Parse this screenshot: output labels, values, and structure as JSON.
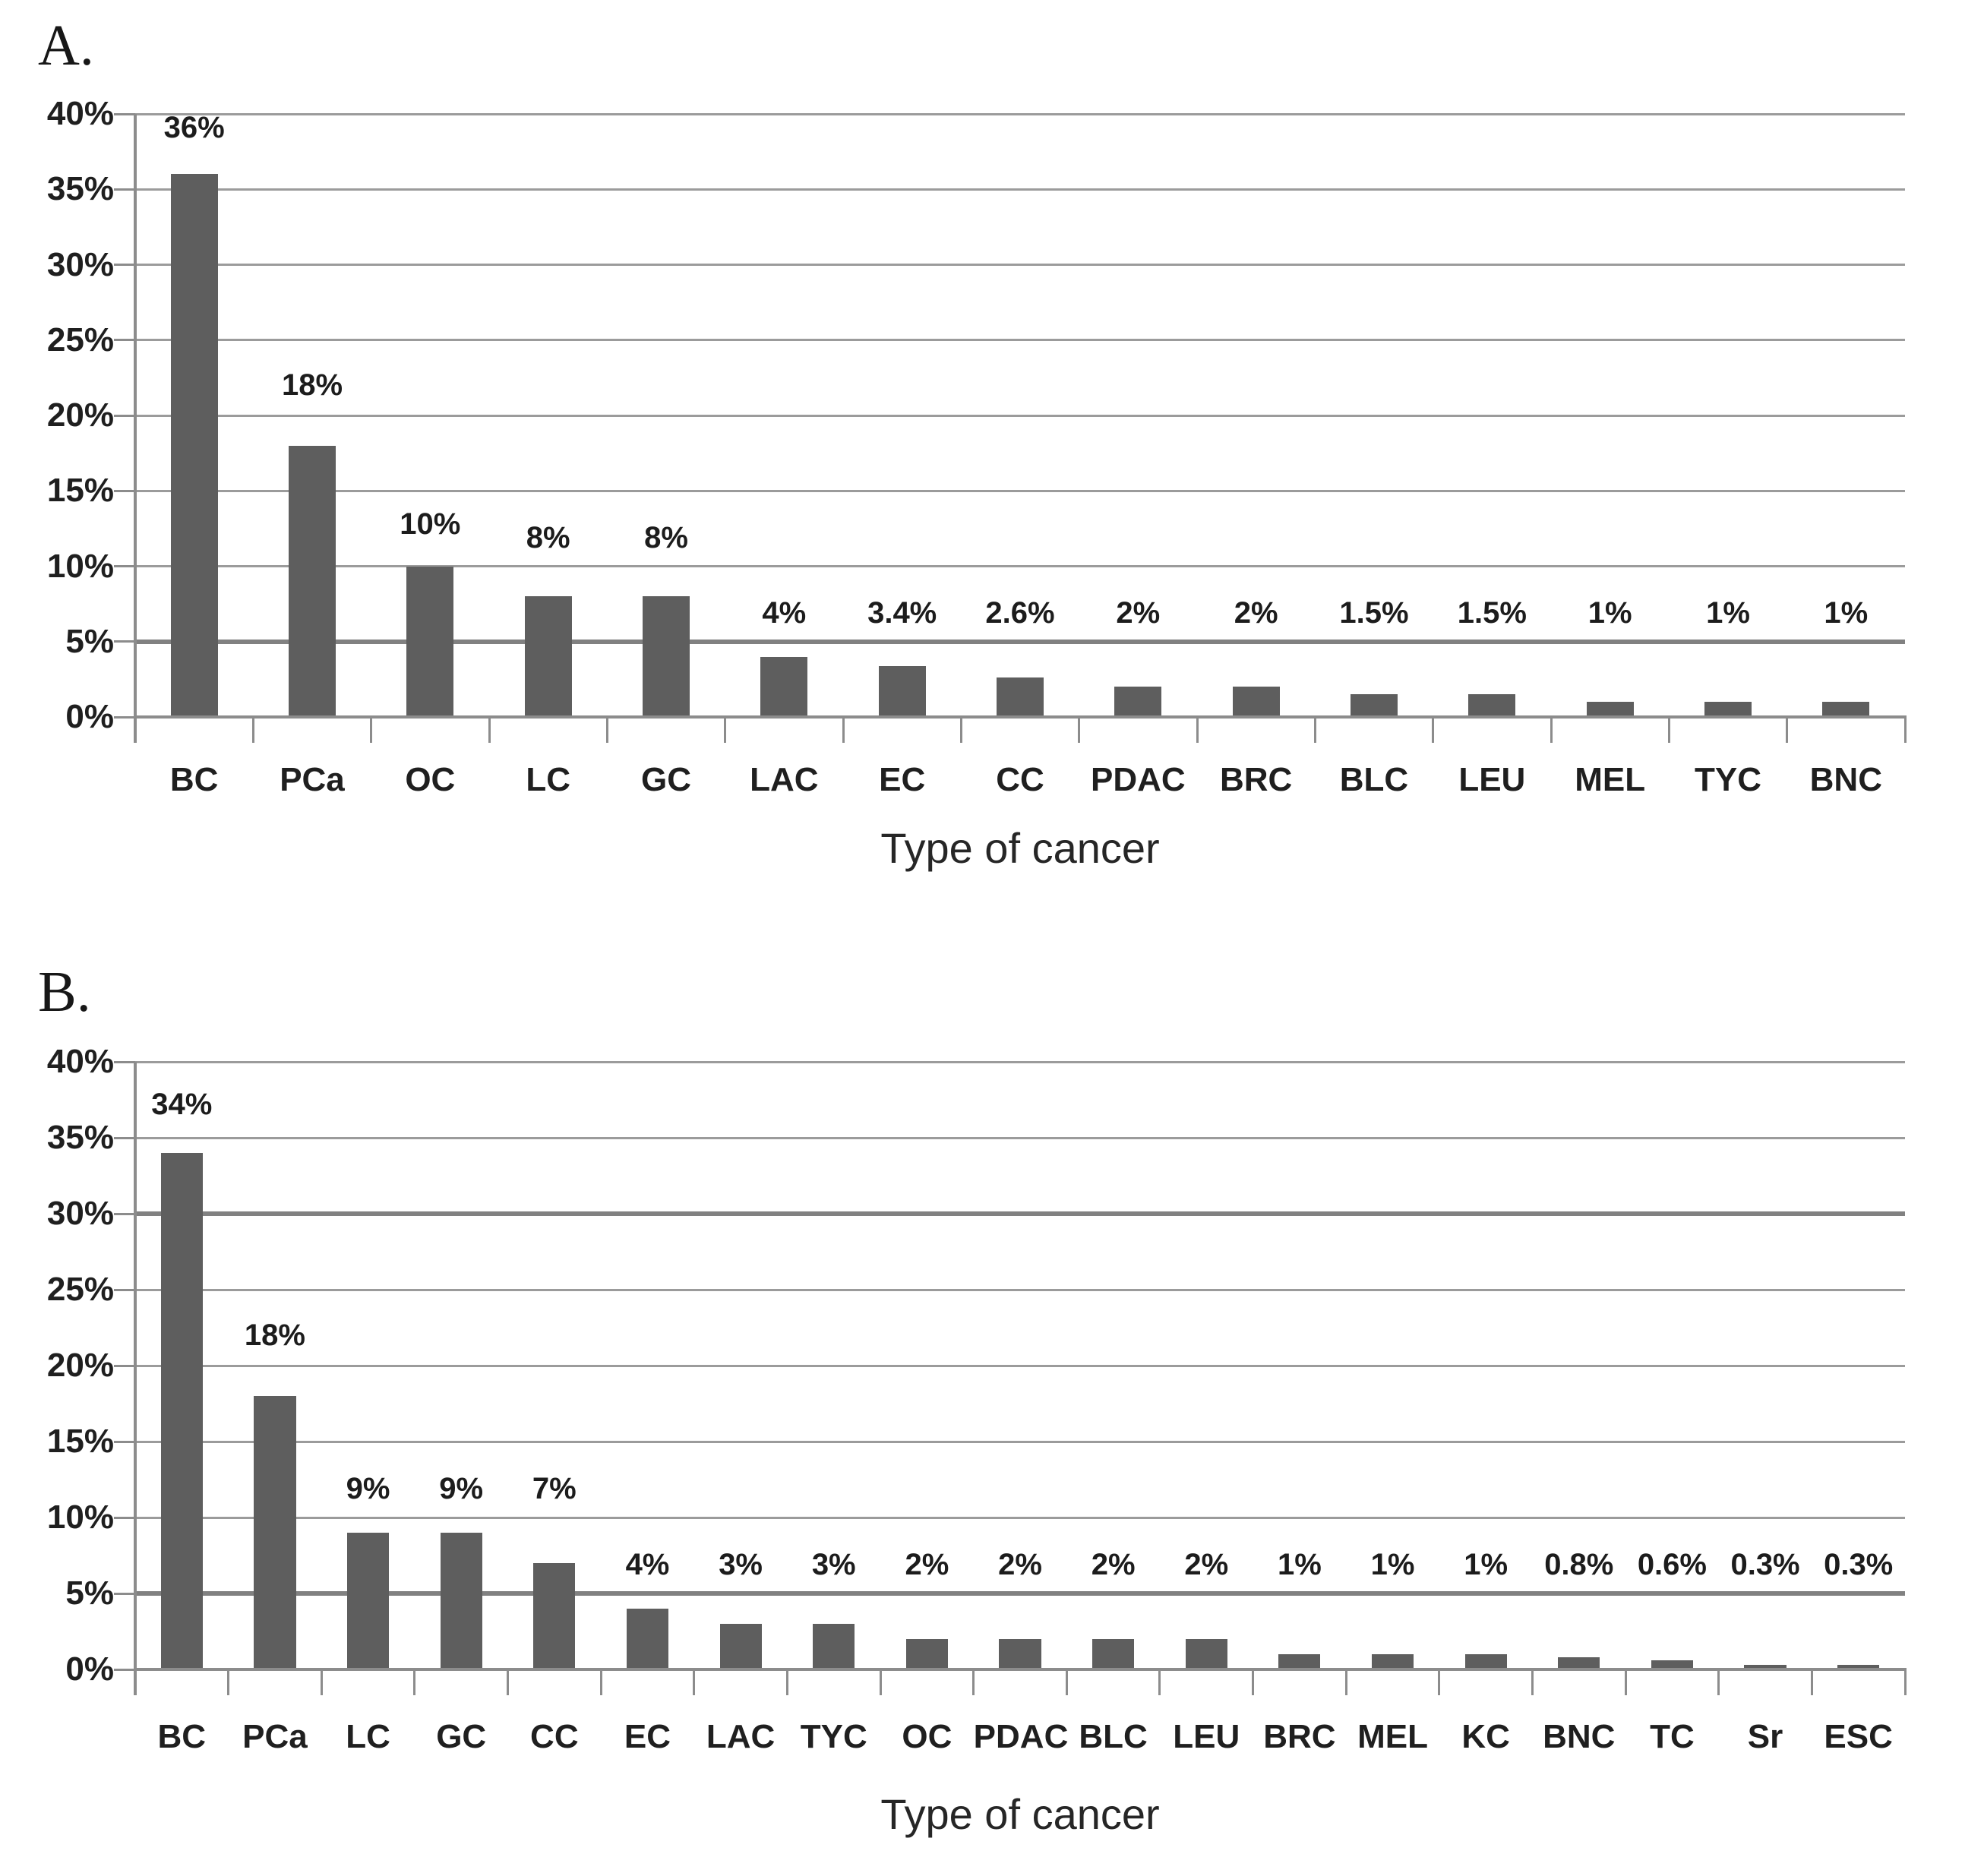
{
  "figure": {
    "background": "#ffffff"
  },
  "colors": {
    "bar": "#5e5e5e",
    "gridline": "#9b9b9b",
    "gridline_heavy": "#818181",
    "axis": "#8c8c8c",
    "tick_text": "#1f1f1f",
    "title_text": "#262626"
  },
  "chart_data": [
    {
      "type": "bar",
      "panel_label": "A.",
      "xlabel": "Type of cancer",
      "ylabel": "",
      "ylim": [
        0,
        40
      ],
      "ytick_step": 5,
      "ytick_labels": [
        "0%",
        "5%",
        "10%",
        "15%",
        "20%",
        "25%",
        "30%",
        "35%",
        "40%"
      ],
      "grid": true,
      "legend": "none",
      "bar_color": "#5e5e5e",
      "categories": [
        "BC",
        "PCa",
        "OC",
        "LC",
        "GC",
        "LAC",
        "EC",
        "CC",
        "PDAC",
        "BRC",
        "BLC",
        "LEU",
        "MEL",
        "TYC",
        "BNC"
      ],
      "values": [
        36,
        18,
        10,
        8,
        8,
        4,
        3.4,
        2.6,
        2,
        2,
        1.5,
        1.5,
        1,
        1,
        1
      ],
      "data_labels": [
        "36%",
        "18%",
        "10%",
        "8%",
        "8%",
        "4%",
        "3.4%",
        "2.6%",
        "2%",
        "2%",
        "1.5%",
        "1.5%",
        "1%",
        "1%",
        "1%"
      ],
      "label_heights": [
        37.8,
        20.7,
        11.5,
        10.6,
        10.6,
        5.6,
        5.6,
        5.6,
        5.6,
        5.6,
        5.6,
        5.6,
        5.6,
        5.6,
        5.6
      ]
    },
    {
      "type": "bar",
      "panel_label": "B.",
      "xlabel": "Type of cancer",
      "ylabel": "",
      "ylim": [
        0,
        40
      ],
      "ytick_step": 5,
      "ytick_labels": [
        "0%",
        "5%",
        "10%",
        "15%",
        "20%",
        "25%",
        "30%",
        "35%",
        "40%"
      ],
      "grid": true,
      "legend": "none",
      "bar_color": "#5e5e5e",
      "categories": [
        "BC",
        "PCa",
        "LC",
        "GC",
        "CC",
        "EC",
        "LAC",
        "TYC",
        "OC",
        "PDAC",
        "BLC",
        "LEU",
        "BRC",
        "MEL",
        "KC",
        "BNC",
        "TC",
        "Sr",
        "ESC"
      ],
      "values": [
        34,
        18,
        9,
        9,
        7,
        4,
        3,
        3,
        2,
        2,
        2,
        2,
        1,
        1,
        1,
        0.8,
        0.6,
        0.3,
        0.3
      ],
      "data_labels": [
        "34%",
        "18%",
        "9%",
        "9%",
        "7%",
        "4%",
        "3%",
        "3%",
        "2%",
        "2%",
        "2%",
        "2%",
        "1%",
        "1%",
        "1%",
        "0.8%",
        "0.6%",
        "0.3%",
        "0.3%"
      ],
      "label_heights": [
        35.9,
        20.7,
        10.6,
        10.6,
        10.6,
        5.6,
        5.6,
        5.6,
        5.6,
        5.6,
        5.6,
        5.6,
        5.6,
        5.6,
        5.6,
        5.6,
        5.6,
        5.6,
        5.6
      ]
    }
  ]
}
